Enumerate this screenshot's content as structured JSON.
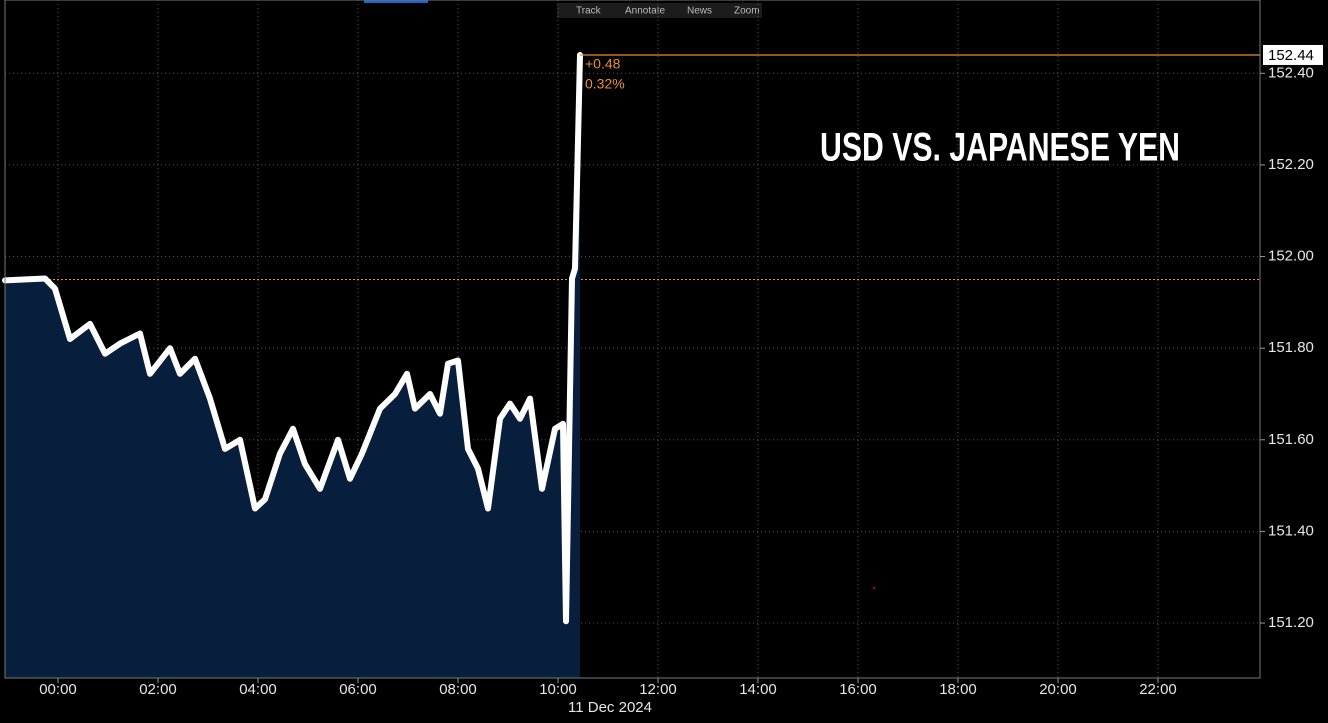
{
  "chart_data": {
    "type": "area",
    "title": "USD VS. JAPANESE YEN",
    "toolbar": [
      "Track",
      "Annotate",
      "News",
      "Zoom"
    ],
    "x_axis_label": "11 Dec 2024",
    "series": [
      {
        "name": "USDJPY",
        "color": "#ffffff",
        "fill": "#071e3d",
        "x": [
          -1.06,
          -0.26,
          -0.06,
          0.24,
          0.64,
          0.94,
          1.24,
          1.64,
          1.84,
          2.24,
          2.44,
          2.74,
          3.04,
          3.34,
          3.64,
          3.94,
          4.14,
          4.44,
          4.7,
          4.94,
          5.24,
          5.6,
          5.84,
          6.08,
          6.44,
          6.74,
          6.98,
          7.14,
          7.44,
          7.64,
          7.8,
          8.0,
          8.2,
          8.4,
          8.6,
          8.84,
          9.04,
          9.24,
          9.44,
          9.68,
          9.94,
          10.1,
          10.16,
          10.28,
          10.34,
          10.44
        ],
        "values": [
          151.948,
          151.952,
          151.93,
          151.82,
          151.853,
          151.788,
          151.81,
          151.832,
          151.744,
          151.8,
          151.744,
          151.777,
          151.69,
          151.58,
          151.6,
          151.45,
          151.47,
          151.57,
          151.624,
          151.547,
          151.493,
          151.6,
          151.515,
          151.57,
          151.668,
          151.7,
          151.744,
          151.668,
          151.7,
          151.657,
          151.766,
          151.773,
          151.58,
          151.537,
          151.45,
          151.646,
          151.679,
          151.646,
          151.69,
          151.493,
          151.624,
          151.635,
          151.204,
          151.952,
          151.974,
          152.44
        ]
      }
    ],
    "reference_line": 151.95,
    "reference_color": "#e8912a",
    "last_price_label": "152.44",
    "change_label": "+0.48",
    "change_pct_label": "0.32%",
    "xlim": [
      -1.06,
      24.04
    ],
    "xticks": [
      {
        "value": 0,
        "label": "00:00"
      },
      {
        "value": 2,
        "label": "02:00"
      },
      {
        "value": 4,
        "label": "04:00"
      },
      {
        "value": 6,
        "label": "06:00"
      },
      {
        "value": 8,
        "label": "08:00"
      },
      {
        "value": 10,
        "label": "10:00"
      },
      {
        "value": 12,
        "label": "12:00"
      },
      {
        "value": 14,
        "label": "14:00"
      },
      {
        "value": 16,
        "label": "16:00"
      },
      {
        "value": 18,
        "label": "18:00"
      },
      {
        "value": 20,
        "label": "20:00"
      },
      {
        "value": 22,
        "label": "22:00"
      }
    ],
    "ylim": [
      151.08,
      152.56
    ],
    "yticks": [
      {
        "value": 151.2,
        "label": "151.20"
      },
      {
        "value": 151.4,
        "label": "151.40"
      },
      {
        "value": 151.6,
        "label": "151.60"
      },
      {
        "value": 151.8,
        "label": "151.80"
      },
      {
        "value": 152.0,
        "label": "152.00"
      },
      {
        "value": 152.2,
        "label": "152.20"
      },
      {
        "value": 152.4,
        "label": "152.40"
      }
    ],
    "grid": true
  }
}
